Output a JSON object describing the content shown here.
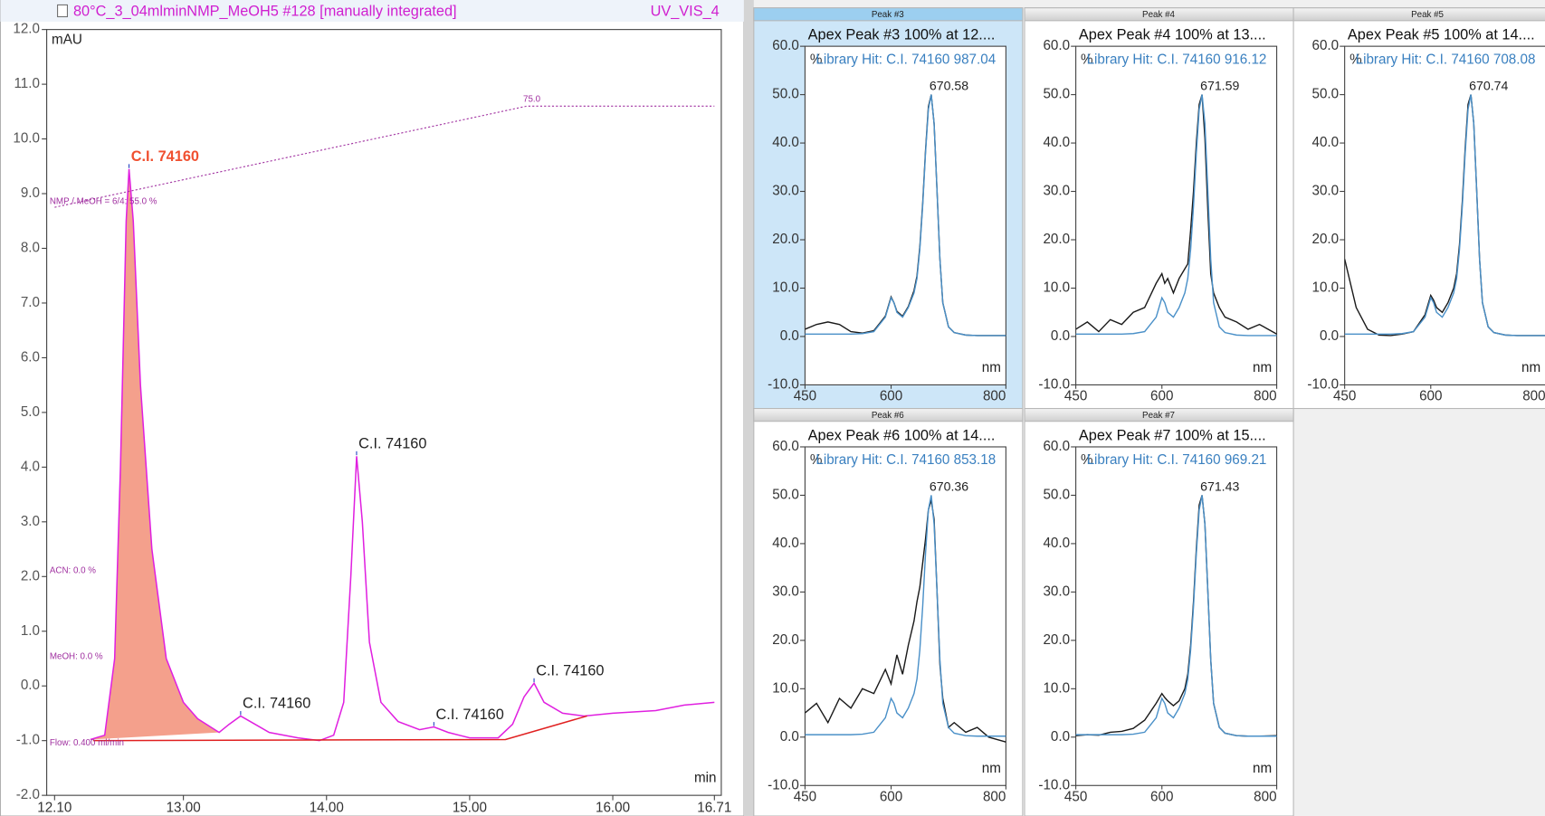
{
  "chart_data": [
    {
      "type": "line",
      "header_left": "80°C_3_04mlminNMP_MeOH5 #128 [manually integrated]",
      "header_right": "UV_VIS_4",
      "ylabel": "mAU",
      "xlabel": "min",
      "xlim": [
        12.1,
        16.71
      ],
      "xticks": [
        {
          "value": 12.1,
          "label": "12.10"
        },
        {
          "value": 13,
          "label": "13.00"
        },
        {
          "value": 14,
          "label": "14.00"
        },
        {
          "value": 15,
          "label": "15.00"
        },
        {
          "value": 16,
          "label": "16.00"
        },
        {
          "value": 16.71,
          "label": "16.71"
        }
      ],
      "ylim": [
        -2,
        12
      ],
      "yticks": [
        {
          "value": -2,
          "label": "-2.0"
        },
        {
          "value": -1,
          "label": "-1.0"
        },
        {
          "value": 0,
          "label": "0.0"
        },
        {
          "value": 1,
          "label": "1.0"
        },
        {
          "value": 2,
          "label": "2.0"
        },
        {
          "value": 3,
          "label": "3.0"
        },
        {
          "value": 4,
          "label": "4.0"
        },
        {
          "value": 5,
          "label": "5.0"
        },
        {
          "value": 6,
          "label": "6.0"
        },
        {
          "value": 7,
          "label": "7.0"
        },
        {
          "value": 8,
          "label": "8.0"
        },
        {
          "value": 9,
          "label": "9.0"
        },
        {
          "value": 10,
          "label": "10.0"
        },
        {
          "value": 11,
          "label": "11.0"
        },
        {
          "value": 12,
          "label": "12.0"
        }
      ],
      "series": [
        {
          "style": "area",
          "color": "#f4a08c",
          "x": [
            12.35,
            12.45,
            12.52,
            12.56,
            12.6,
            12.62,
            12.65,
            12.7,
            12.78,
            12.88,
            13.0,
            13.1,
            13.25
          ],
          "values": [
            -0.98,
            -0.9,
            0.5,
            4,
            8.5,
            9.45,
            8.5,
            5.5,
            2.5,
            0.5,
            -0.3,
            -0.6,
            -0.85
          ]
        },
        {
          "style": "solid",
          "color": "#e020e0",
          "x": [
            12.35,
            12.45,
            12.52,
            12.56,
            12.6,
            12.62,
            12.65,
            12.7,
            12.78,
            12.88,
            13.0,
            13.1,
            13.25,
            13.32,
            13.4,
            13.5,
            13.6,
            13.8,
            13.95,
            14.05,
            14.12,
            14.17,
            14.21,
            14.25,
            14.3,
            14.38,
            14.5,
            14.65,
            14.75,
            14.85,
            15.0,
            15.2,
            15.3,
            15.38,
            15.45,
            15.52,
            15.65,
            15.8,
            16.0,
            16.3,
            16.5,
            16.71
          ],
          "values": [
            -0.98,
            -0.9,
            0.5,
            4,
            8.5,
            9.45,
            8.5,
            5.5,
            2.5,
            0.5,
            -0.3,
            -0.6,
            -0.85,
            -0.7,
            -0.55,
            -0.7,
            -0.85,
            -0.95,
            -1,
            -0.9,
            -0.3,
            2,
            4.2,
            3,
            0.8,
            -0.3,
            -0.65,
            -0.8,
            -0.75,
            -0.85,
            -0.95,
            -0.95,
            -0.7,
            -0.2,
            0.05,
            -0.3,
            -0.5,
            -0.55,
            -0.5,
            -0.45,
            -0.35,
            -0.3
          ]
        },
        {
          "style": "solid",
          "color": "#e02020",
          "x": [
            12.37,
            15.25,
            15.82
          ],
          "values": [
            -1.0,
            -0.98,
            -0.55
          ]
        },
        {
          "style": "dotted",
          "color": "#a030a0",
          "x": [
            12.1,
            15.4,
            16.71
          ],
          "values": [
            8.75,
            10.6,
            10.6
          ]
        }
      ],
      "gradient_label": "75.0",
      "notes": [
        "NMP / MeOH = 6/4: 55.0 %",
        "ACN: 0.0 %",
        "MeOH: 0.0 %",
        "Flow: 0.400 ml/min"
      ],
      "annotations": [
        {
          "text": "C.I. 74160",
          "x": 12.62,
          "y": 9.45,
          "color": "#f05030"
        },
        {
          "text": "C.I. 74160",
          "x": 13.4,
          "y": -0.55
        },
        {
          "text": "C.I. 74160",
          "x": 14.21,
          "y": 4.2
        },
        {
          "text": "C.I. 74160",
          "x": 14.75,
          "y": -0.75
        },
        {
          "text": "C.I. 74160",
          "x": 15.45,
          "y": 0.05
        }
      ]
    },
    {
      "type": "line",
      "xlabel": "nm",
      "ylabel": "%",
      "xlim": [
        450,
        800
      ],
      "xticks": [
        450,
        600,
        800
      ],
      "ylim": [
        -10,
        60
      ],
      "yticks": [
        {
          "value": -10,
          "label": "-10.0"
        },
        {
          "value": 0,
          "label": "0.0"
        },
        {
          "value": 10,
          "label": "10.0"
        },
        {
          "value": 20,
          "label": "20.0"
        },
        {
          "value": 30,
          "label": "30.0"
        },
        {
          "value": 40,
          "label": "40.0"
        },
        {
          "value": 50,
          "label": "50.0"
        },
        {
          "value": 60,
          "label": "60.0"
        }
      ],
      "x": [
        450,
        470,
        490,
        510,
        530,
        550,
        570,
        590,
        600,
        605,
        610,
        620,
        630,
        640,
        645,
        650,
        655,
        660,
        665,
        670,
        675,
        680,
        685,
        690,
        700,
        710,
        730,
        750,
        770,
        800
      ],
      "panels": [
        {
          "header": "Peak #3",
          "selected": true,
          "title": "Apex Peak #3 100% at 12....",
          "subtitle": "Library Hit: C.I. 74160 987.04",
          "annotation": "670.58",
          "series": [
            {
              "color": "#1a1a1a",
              "values": [
                1.5,
                2.5,
                3,
                2.5,
                1,
                0.7,
                1.2,
                4.2,
                8.2,
                7,
                5.2,
                4.2,
                6.2,
                9.5,
                12.5,
                18.5,
                27.5,
                38.5,
                47.5,
                50,
                44,
                30,
                16,
                7,
                2,
                0.8,
                0.3,
                0.2,
                0.2,
                0.2
              ]
            },
            {
              "color": "#4a90c8",
              "values": [
                0.5,
                0.5,
                0.5,
                0.5,
                0.5,
                0.6,
                1,
                4,
                8,
                7,
                5,
                4,
                6,
                9,
                12,
                18,
                27,
                38,
                47,
                50,
                44,
                30,
                16,
                7,
                2,
                0.8,
                0.3,
                0.2,
                0.2,
                0.2
              ]
            }
          ]
        },
        {
          "header": "Peak #4",
          "selected": false,
          "title": "Apex Peak #4 100% at 13....",
          "subtitle": "Library Hit: C.I. 74160 916.12",
          "annotation": "671.59",
          "series": [
            {
              "color": "#1a1a1a",
              "values": [
                1.5,
                3,
                1,
                3.5,
                2.5,
                5,
                6,
                11,
                13,
                11,
                12,
                9,
                12,
                14,
                15,
                22,
                30,
                40,
                48,
                50,
                41,
                26,
                13,
                9,
                6,
                4,
                3,
                1.5,
                2.5,
                0.5
              ]
            },
            {
              "color": "#4a90c8",
              "values": [
                0.5,
                0.5,
                0.5,
                0.5,
                0.5,
                0.6,
                1,
                4,
                8,
                7,
                5,
                4,
                6,
                9,
                12,
                18,
                27,
                38,
                47,
                50,
                44,
                30,
                16,
                7,
                2,
                0.8,
                0.3,
                0.2,
                0.2,
                0.2
              ]
            }
          ]
        },
        {
          "header": "Peak #5",
          "selected": false,
          "title": "Apex Peak #5 100% at 14....",
          "subtitle": "Library Hit: C.I. 74160 708.08",
          "annotation": "670.74",
          "series": [
            {
              "color": "#1a1a1a",
              "values": [
                16,
                6,
                1.5,
                0.3,
                0.2,
                0.5,
                1,
                4.5,
                8.5,
                7.5,
                6,
                5,
                7,
                10,
                13,
                19,
                28,
                39,
                48,
                50,
                44,
                30,
                16,
                7,
                2,
                0.8,
                0.3,
                0.2,
                0.2,
                0.2
              ]
            },
            {
              "color": "#4a90c8",
              "values": [
                0.5,
                0.5,
                0.5,
                0.5,
                0.5,
                0.6,
                1,
                4,
                8,
                7,
                5,
                4,
                6,
                9,
                12,
                18,
                27,
                38,
                47,
                50,
                44,
                30,
                16,
                7,
                2,
                0.8,
                0.3,
                0.2,
                0.2,
                0.2
              ]
            }
          ]
        },
        {
          "header": "Peak #6",
          "selected": false,
          "title": "Apex Peak #6 100% at 14....",
          "subtitle": "Library Hit: C.I. 74160 853.18",
          "annotation": "670.36",
          "series": [
            {
              "color": "#1a1a1a",
              "values": [
                5,
                7,
                3,
                8,
                6,
                10,
                9,
                14,
                11,
                14,
                17,
                13,
                19,
                24,
                28,
                31,
                36,
                41,
                47,
                49,
                45,
                30,
                15,
                8,
                2,
                3,
                1,
                2,
                0,
                -1
              ]
            },
            {
              "color": "#4a90c8",
              "values": [
                0.5,
                0.5,
                0.5,
                0.5,
                0.5,
                0.6,
                1,
                4,
                8,
                7,
                5,
                4,
                6,
                9,
                12,
                18,
                27,
                38,
                47,
                50,
                44,
                30,
                16,
                7,
                2,
                0.8,
                0.3,
                0.2,
                0.2,
                0.2
              ]
            }
          ]
        },
        {
          "header": "Peak #7",
          "selected": false,
          "title": "Apex Peak #7 100% at 15....",
          "subtitle": "Library Hit: C.I. 74160 969.21",
          "annotation": "671.43",
          "series": [
            {
              "color": "#1a1a1a",
              "values": [
                0.3,
                0.5,
                0.4,
                1,
                1.2,
                1.8,
                3.5,
                7,
                9,
                8.2,
                7.5,
                6.5,
                7.5,
                10,
                13,
                19,
                28,
                39,
                48,
                50,
                44,
                30,
                16,
                7,
                2,
                0.8,
                0.3,
                0.2,
                0.2,
                0.3
              ]
            },
            {
              "color": "#4a90c8",
              "values": [
                0.5,
                0.5,
                0.5,
                0.5,
                0.5,
                0.6,
                1,
                4,
                8,
                7,
                5,
                4,
                6,
                9,
                12,
                18,
                27,
                38,
                47,
                50,
                44,
                30,
                16,
                7,
                2,
                0.8,
                0.3,
                0.2,
                0.2,
                0.2
              ]
            }
          ]
        }
      ]
    }
  ]
}
